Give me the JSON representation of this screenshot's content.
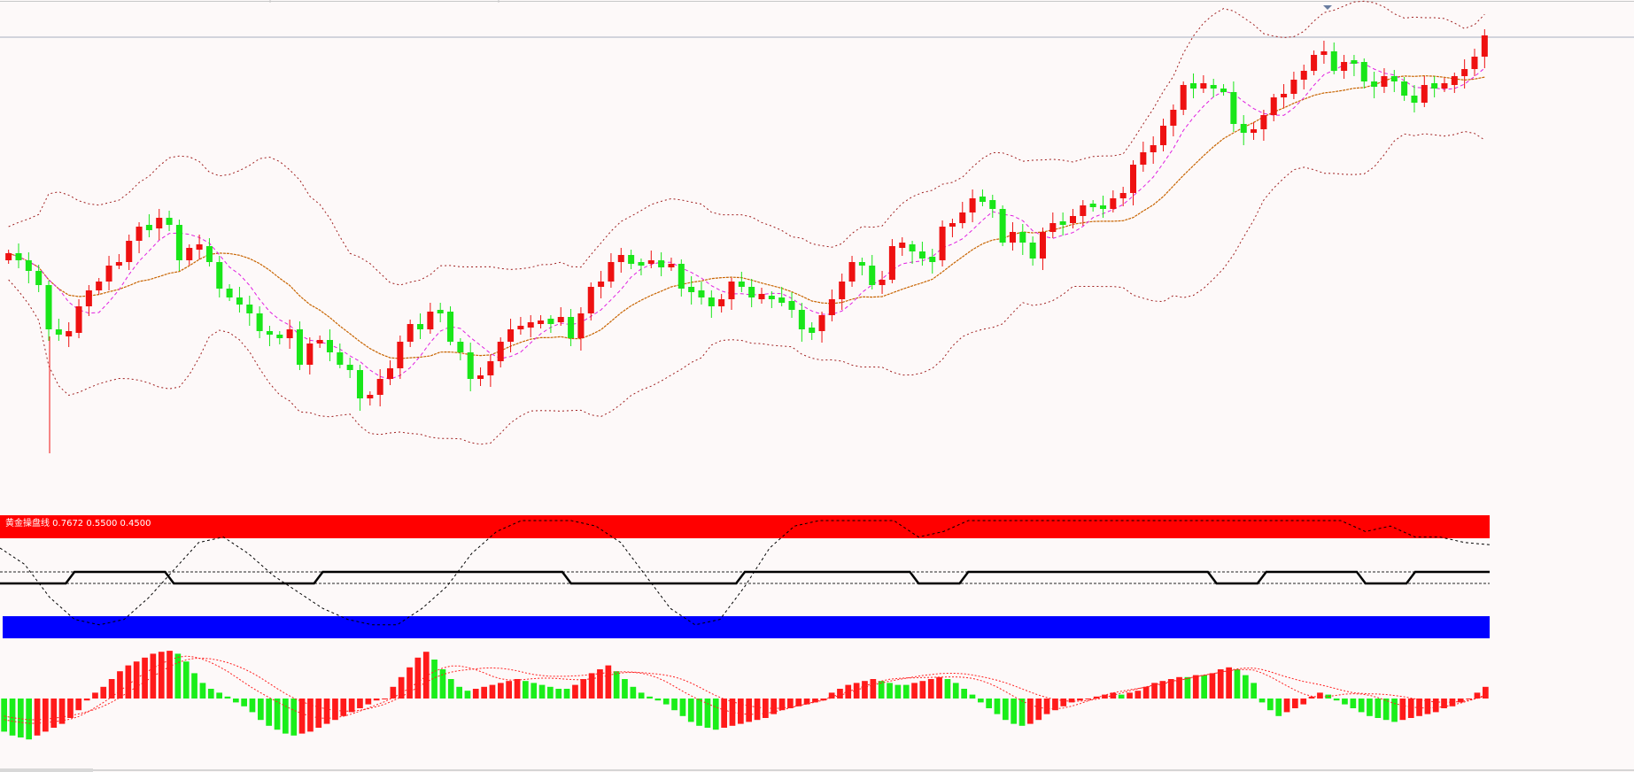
{
  "chart_data": [
    {
      "type": "candlestick",
      "panel": "price",
      "overlays": [
        "bollinger-bands",
        "moving-average-magenta",
        "moving-average-orange"
      ],
      "colors": {
        "up": "#ee1111",
        "down": "#19e619",
        "bands": "#a02020",
        "ma_fast": "#e020e0",
        "ma_slow": "#c86400",
        "price_line": "#a8b0c0"
      },
      "closes": [
        286,
        294,
        306,
        322,
        372,
        378,
        376,
        346,
        328,
        318,
        300,
        296,
        272,
        256,
        258,
        246,
        254,
        294,
        280,
        278,
        296,
        326,
        336,
        344,
        354,
        374,
        378,
        382,
        372,
        412,
        388,
        384,
        398,
        412,
        418,
        450,
        446,
        428,
        416,
        386,
        366,
        372,
        352,
        352,
        386,
        398,
        428,
        424,
        408,
        386,
        372,
        368,
        366,
        362,
        364,
        358,
        382,
        354,
        324,
        318,
        296,
        288,
        298,
        298,
        294,
        302,
        298,
        326,
        328,
        336,
        346,
        338,
        318,
        324,
        336,
        334,
        338,
        340,
        350,
        372,
        374,
        356,
        338,
        318,
        296,
        300,
        322,
        316,
        278,
        276,
        284,
        292,
        294,
        256,
        252,
        240,
        224,
        226,
        236,
        274,
        262,
        274,
        292,
        262,
        252,
        252,
        244,
        232,
        232,
        236,
        224,
        218,
        186,
        172,
        164,
        142,
        124,
        96,
        98,
        96,
        100,
        104,
        140,
        150,
        146,
        130,
        110,
        106,
        90,
        80,
        62,
        58,
        80,
        70,
        70,
        92,
        98,
        86,
        92,
        108,
        116,
        96,
        98,
        96,
        86,
        78,
        64,
        40
      ],
      "price_line_level": 36,
      "band_center": 470,
      "band_width": 75
    },
    {
      "type": "line",
      "panel": "oscillator",
      "title": "黄金操盘线 0.7672 0.5500 0.4500",
      "levels": {
        "upper": 0.55,
        "lower": 0.45
      },
      "colors": {
        "upper_bar": "#ff0000",
        "lower_bar": "#0000ff",
        "step_line": "#000000",
        "dotted": "#000000"
      },
      "step_line": [
        0,
        0,
        0,
        1,
        1,
        1,
        1,
        0,
        0,
        0,
        0,
        0,
        0,
        1,
        1,
        1,
        1,
        1,
        1,
        1,
        1,
        1,
        1,
        0,
        0,
        0,
        0,
        0,
        0,
        0,
        1,
        1,
        1,
        1,
        1,
        1,
        1,
        0,
        0,
        1,
        1,
        1,
        1,
        1,
        1,
        1,
        1,
        1,
        1,
        0,
        0,
        1,
        1,
        1,
        1,
        0,
        0,
        1,
        1,
        1,
        1
      ],
      "dotted_line": [
        0.75,
        0.6,
        0.3,
        0.1,
        0.05,
        0.1,
        0.3,
        0.55,
        0.8,
        0.85,
        0.7,
        0.5,
        0.35,
        0.2,
        0.1,
        0.05,
        0.05,
        0.2,
        0.4,
        0.7,
        0.9,
        1.0,
        1.0,
        1.0,
        0.95,
        0.8,
        0.5,
        0.2,
        0.05,
        0.1,
        0.4,
        0.75,
        0.95,
        1.0,
        1.0,
        1.0,
        1.0,
        0.85,
        0.9,
        1.0,
        1.0,
        1.0,
        1.0,
        1.0,
        1.0,
        1.0,
        1.0,
        1.0,
        1.0,
        1.0,
        1.0,
        1.0,
        1.0,
        1.0,
        1.0,
        0.9,
        0.95,
        0.85,
        0.85,
        0.8,
        0.78
      ]
    },
    {
      "type": "bar",
      "panel": "histogram",
      "colors": {
        "rising": "#ff1a1a",
        "falling": "#1aee1a",
        "signal": "#ff2020"
      },
      "values": [
        -34,
        -38,
        -40,
        -42,
        -38,
        -34,
        -30,
        -26,
        -20,
        -12,
        -2,
        6,
        12,
        20,
        28,
        34,
        38,
        42,
        46,
        48,
        49,
        46,
        38,
        26,
        16,
        10,
        6,
        2,
        -4,
        -8,
        -14,
        -22,
        -28,
        -32,
        -36,
        -38,
        -36,
        -34,
        -30,
        -26,
        -22,
        -18,
        -14,
        -10,
        -6,
        -2,
        0,
        12,
        22,
        32,
        42,
        48,
        40,
        30,
        20,
        12,
        8,
        10,
        12,
        14,
        16,
        18,
        20,
        18,
        16,
        14,
        12,
        10,
        10,
        14,
        20,
        26,
        30,
        34,
        28,
        20,
        12,
        6,
        2,
        -2,
        -6,
        -12,
        -18,
        -24,
        -28,
        -30,
        -32,
        -30,
        -28,
        -26,
        -24,
        -22,
        -20,
        -16,
        -12,
        -10,
        -8,
        -6,
        -4,
        -2,
        6,
        10,
        14,
        16,
        18,
        20,
        18,
        16,
        14,
        14,
        16,
        18,
        20,
        22,
        20,
        16,
        10,
        4,
        -4,
        -10,
        -16,
        -22,
        -26,
        -28,
        -26,
        -22,
        -16,
        -12,
        -8,
        -4,
        -2,
        0,
        2,
        4,
        6,
        4,
        6,
        8,
        12,
        16,
        18,
        20,
        22,
        22,
        24,
        24,
        26,
        30,
        32,
        30,
        24,
        16,
        -4,
        -12,
        -18,
        -14,
        -10,
        -6,
        2,
        6,
        4,
        -2,
        -6,
        -10,
        -14,
        -18,
        -20,
        -22,
        -24,
        -22,
        -20,
        -18,
        -16,
        -14,
        -10,
        -8,
        -4,
        0,
        6,
        12
      ]
    }
  ]
}
